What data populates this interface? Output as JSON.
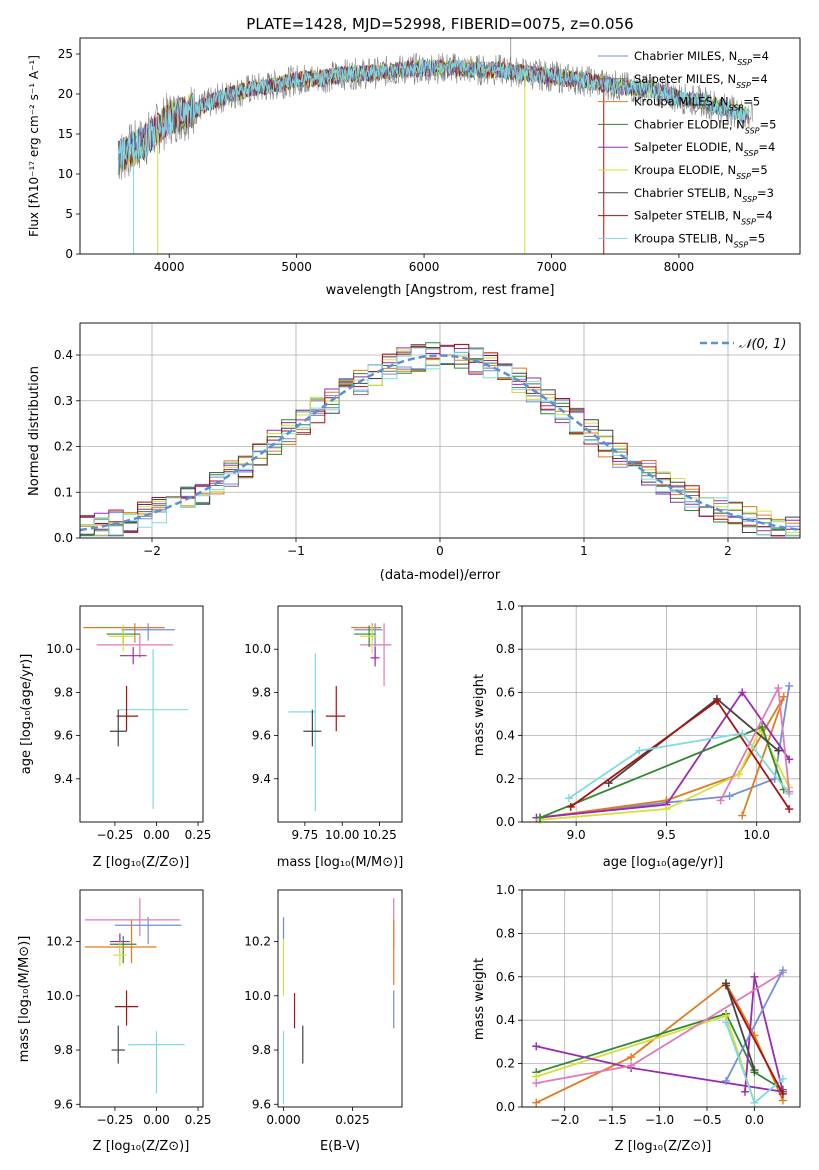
{
  "figure_title": "PLATE=1428, MJD=52998, FIBERID=0075, z=0.056",
  "colors": {
    "chab_miles": "#6f8fe0",
    "salp_miles": "#777777",
    "kroupa_miles": "#e07b1f",
    "chab_elodie": "#2f8a2f",
    "salp_elodie": "#9a2ab0",
    "kroupa_elodie": "#d7df3a",
    "chab_stelib": "#444444",
    "salp_stelib": "#aa1111",
    "kroupa_stelib": "#7fdbe0",
    "pink": "#e07ab8",
    "gauss": "#5b8fd6"
  },
  "chart_data": [
    {
      "id": "spectrum",
      "type": "line",
      "title": "PLATE=1428, MJD=52998, FIBERID=0075, z=0.056",
      "xlabel": "wavelength [Angstrom, rest frame]",
      "ylabel": "Flux [fλ10⁻¹⁷ erg cm⁻² s⁻¹ A⁻¹]",
      "xlim": [
        3300,
        8950
      ],
      "ylim": [
        0,
        27
      ],
      "xticks": [
        "4000",
        "5000",
        "6000",
        "7000",
        "8000"
      ],
      "yticks": [
        "0",
        "5",
        "10",
        "15",
        "20",
        "25"
      ],
      "legend_position": "right",
      "series": [
        {
          "name": "Chabrier MILES, N_SSP=4",
          "color_key": "chab_miles"
        },
        {
          "name": "Salpeter MILES, N_SSP=4",
          "color_key": "salp_miles"
        },
        {
          "name": "Kroupa MILES, N_SSP=5",
          "color_key": "kroupa_miles"
        },
        {
          "name": "Chabrier ELODIE, N_SSP=5",
          "color_key": "chab_elodie"
        },
        {
          "name": "Salpeter ELODIE, N_SSP=4",
          "color_key": "salp_elodie"
        },
        {
          "name": "Kroupa ELODIE, N_SSP=5",
          "color_key": "kroupa_elodie"
        },
        {
          "name": "Chabrier STELIB, N_SSP=3",
          "color_key": "chab_stelib"
        },
        {
          "name": "Salpeter STELIB, N_SSP=4",
          "color_key": "salp_stelib"
        },
        {
          "name": "Kroupa STELIB, N_SSP=5",
          "color_key": "kroupa_stelib"
        }
      ],
      "continuum": {
        "x": [
          3600,
          3800,
          4000,
          4200,
          4400,
          4600,
          4800,
          5000,
          5200,
          5400,
          5600,
          5800,
          6000,
          6200,
          6400,
          6600,
          6800,
          7000,
          7200,
          7400,
          7600,
          7800,
          8000,
          8200,
          8400,
          8600
        ],
        "y": [
          12,
          14,
          17,
          18,
          19.5,
          20.5,
          21,
          21.8,
          22,
          22.5,
          22.6,
          23,
          23.2,
          23.3,
          23,
          23,
          22.6,
          22.2,
          21.8,
          21.3,
          20.8,
          20.5,
          19.5,
          19,
          18,
          17
        ]
      }
    },
    {
      "id": "residuals",
      "type": "histogram",
      "xlabel": "(data-model)/error",
      "ylabel": "Normed distribution",
      "xlim": [
        -2.5,
        2.5
      ],
      "ylim": [
        0,
        0.47
      ],
      "xticks": [
        "−2",
        "−1",
        "0",
        "1",
        "2"
      ],
      "yticks": [
        "0.0",
        "0.1",
        "0.2",
        "0.3",
        "0.4"
      ],
      "grid": true,
      "legend": "𝒩(0, 1)",
      "legend_position": "top-right",
      "bin_width": 0.1,
      "reference_curve": "normal(0,1)"
    },
    {
      "id": "age_vs_Z",
      "type": "errorbar",
      "xlabel": "Z [log₁₀(Z/Z⊙)]",
      "ylabel": "age  [log₁₀(age/yr)]",
      "xlim": [
        -0.46,
        0.28
      ],
      "ylim": [
        9.2,
        10.2
      ],
      "xticks": [
        "−0.25",
        "0.00",
        "0.25"
      ],
      "xtick_values": [
        -0.25,
        0,
        0.25
      ],
      "yticks": [
        "9.4",
        "9.6",
        "9.8",
        "10.0"
      ],
      "ytick_values": [
        9.4,
        9.6,
        9.8,
        10.0
      ],
      "points": [
        {
          "color_key": "kroupa_miles",
          "x": -0.13,
          "xerr": [
            0.31,
            0.18
          ],
          "y": 10.1,
          "yerr": [
            0.07,
            0.02
          ]
        },
        {
          "color_key": "chab_miles",
          "x": -0.05,
          "xerr": [
            0.16,
            0.16
          ],
          "y": 10.09,
          "yerr": [
            0.05,
            0.03
          ]
        },
        {
          "color_key": "pink",
          "x": -0.1,
          "xerr": [
            0.26,
            0.2
          ],
          "y": 10.02,
          "yerr": [
            0.06,
            0.05
          ]
        },
        {
          "color_key": "chab_elodie",
          "x": -0.2,
          "xerr": [
            0.1,
            0.1
          ],
          "y": 10.07,
          "yerr": [
            0.05,
            0.04
          ]
        },
        {
          "color_key": "kroupa_elodie",
          "x": -0.2,
          "xerr": [
            0.09,
            0.07
          ],
          "y": 10.06,
          "yerr": [
            0.07,
            0.05
          ]
        },
        {
          "color_key": "salp_elodie",
          "x": -0.14,
          "xerr": [
            0.08,
            0.08
          ],
          "y": 9.97,
          "yerr": [
            0.04,
            0.04
          ]
        },
        {
          "color_key": "kroupa_stelib",
          "x": -0.02,
          "xerr": [
            0.21,
            0.21
          ],
          "y": 9.72,
          "yerr": [
            0.46,
            0.28
          ]
        },
        {
          "color_key": "salp_stelib",
          "x": -0.18,
          "xerr": [
            0.06,
            0.07
          ],
          "y": 9.69,
          "yerr": [
            0.07,
            0.14
          ]
        },
        {
          "color_key": "chab_stelib",
          "x": -0.23,
          "xerr": [
            0.05,
            0.05
          ],
          "y": 9.62,
          "yerr": [
            0.07,
            0.1
          ]
        }
      ]
    },
    {
      "id": "age_vs_mass",
      "type": "errorbar",
      "xlabel": "mass [log₁₀(M/M⊙)]",
      "ylabel": "",
      "xlim": [
        9.57,
        10.4
      ],
      "ylim": [
        9.2,
        10.2
      ],
      "xticks": [
        "9.75",
        "10.00",
        "10.25"
      ],
      "xtick_values": [
        9.75,
        10.0,
        10.25
      ],
      "yticks": [
        "9.4",
        "9.6",
        "9.8",
        "10.0"
      ],
      "ytick_values": [
        9.4,
        9.6,
        9.8,
        10.0
      ],
      "points": [
        {
          "color_key": "chab_miles",
          "x": 10.22,
          "xerr": [
            0.14,
            0.05
          ],
          "y": 10.09,
          "yerr": [
            0.14,
            0.03
          ]
        },
        {
          "color_key": "kroupa_miles",
          "x": 10.2,
          "xerr": [
            0.14,
            0.06
          ],
          "y": 10.1,
          "yerr": [
            0.06,
            0.02
          ]
        },
        {
          "color_key": "pink",
          "x": 10.28,
          "xerr": [
            0.16,
            0.05
          ],
          "y": 10.02,
          "yerr": [
            0.19,
            0.1
          ]
        },
        {
          "color_key": "chab_elodie",
          "x": 10.18,
          "xerr": [
            0.1,
            0.04
          ],
          "y": 10.07,
          "yerr": [
            0.06,
            0.04
          ]
        },
        {
          "color_key": "kroupa_elodie",
          "x": 10.2,
          "xerr": [
            0.08,
            0.03
          ],
          "y": 10.06,
          "yerr": [
            0.08,
            0.05
          ]
        },
        {
          "color_key": "salp_elodie",
          "x": 10.22,
          "xerr": [
            0.03,
            0.03
          ],
          "y": 9.96,
          "yerr": [
            0.04,
            0.05
          ]
        },
        {
          "color_key": "kroupa_stelib",
          "x": 9.82,
          "xerr": [
            0.18,
            0.0
          ],
          "y": 9.71,
          "yerr": [
            0.46,
            0.27
          ]
        },
        {
          "color_key": "salp_stelib",
          "x": 9.96,
          "xerr": [
            0.07,
            0.06
          ],
          "y": 9.69,
          "yerr": [
            0.07,
            0.14
          ]
        },
        {
          "color_key": "chab_stelib",
          "x": 9.8,
          "xerr": [
            0.06,
            0.06
          ],
          "y": 9.62,
          "yerr": [
            0.07,
            0.1
          ]
        }
      ]
    },
    {
      "id": "weight_vs_age",
      "type": "line",
      "xlabel": "age  [log₁₀(age/yr)]",
      "ylabel": "mass weight",
      "xlim": [
        8.7,
        10.24
      ],
      "ylim": [
        0,
        1.0
      ],
      "xticks": [
        "9.0",
        "9.5",
        "10.0"
      ],
      "xtick_values": [
        9.0,
        9.5,
        10.0
      ],
      "yticks": [
        "0.0",
        "0.2",
        "0.4",
        "0.6",
        "0.8",
        "1.0"
      ],
      "ytick_values": [
        0,
        0.2,
        0.4,
        0.6,
        0.8,
        1.0
      ],
      "grid": true,
      "series": [
        {
          "color_key": "chab_miles",
          "x": [
            8.8,
            9.5,
            9.85,
            10.1,
            10.18
          ],
          "y": [
            0.02,
            0.09,
            0.12,
            0.2,
            0.63
          ]
        },
        {
          "color_key": "kroupa_miles",
          "x": [
            8.8,
            9.5,
            9.9,
            10.15,
            9.92
          ],
          "y": [
            0.02,
            0.1,
            0.22,
            0.58,
            0.03
          ]
        },
        {
          "color_key": "salp_elodie",
          "x": [
            8.78,
            9.5,
            9.92,
            10.18
          ],
          "y": [
            0.02,
            0.08,
            0.6,
            0.29
          ]
        },
        {
          "color_key": "kroupa_elodie",
          "x": [
            8.8,
            9.5,
            9.9,
            10.02,
            10.18
          ],
          "y": [
            0.01,
            0.06,
            0.22,
            0.43,
            0.16
          ]
        },
        {
          "color_key": "chab_elodie",
          "x": [
            8.8,
            10.03,
            10.15
          ],
          "y": [
            0.02,
            0.44,
            0.15
          ]
        },
        {
          "color_key": "chab_stelib",
          "x": [
            9.18,
            9.78,
            10.12
          ],
          "y": [
            0.18,
            0.57,
            0.33
          ]
        },
        {
          "color_key": "salp_stelib",
          "x": [
            8.97,
            9.78,
            10.18
          ],
          "y": [
            0.07,
            0.56,
            0.06
          ]
        },
        {
          "color_key": "kroupa_stelib",
          "x": [
            8.96,
            9.35,
            9.92,
            10.18
          ],
          "y": [
            0.11,
            0.33,
            0.41,
            0.13
          ]
        },
        {
          "color_key": "pink",
          "x": [
            9.8,
            10.12,
            10.18
          ],
          "y": [
            0.1,
            0.62,
            0.14
          ]
        }
      ]
    },
    {
      "id": "mass_vs_Z",
      "type": "errorbar",
      "xlabel": "Z [log₁₀(Z/Z⊙)]",
      "ylabel": "mass [log₁₀(M/M⊙)]",
      "xlim": [
        -0.46,
        0.28
      ],
      "ylim": [
        9.59,
        10.39
      ],
      "xticks": [
        "−0.25",
        "0.00",
        "0.25"
      ],
      "xtick_values": [
        -0.25,
        0,
        0.25
      ],
      "yticks": [
        "9.6",
        "9.8",
        "10.0",
        "10.2"
      ],
      "ytick_values": [
        9.6,
        9.8,
        10.0,
        10.2
      ],
      "points": [
        {
          "color_key": "pink",
          "x": -0.1,
          "xerr": [
            0.33,
            0.24
          ],
          "y": 10.28,
          "yerr": [
            0.06,
            0.08
          ]
        },
        {
          "color_key": "chab_miles",
          "x": -0.05,
          "xerr": [
            0.2,
            0.2
          ],
          "y": 10.26,
          "yerr": [
            0.07,
            0.03
          ]
        },
        {
          "color_key": "chab_elodie",
          "x": -0.2,
          "xerr": [
            0.08,
            0.08
          ],
          "y": 10.19,
          "yerr": [
            0.07,
            0.03
          ]
        },
        {
          "color_key": "kroupa_miles",
          "x": -0.15,
          "xerr": [
            0.28,
            0.15
          ],
          "y": 10.18,
          "yerr": [
            0.06,
            0.1
          ]
        },
        {
          "color_key": "salp_elodie",
          "x": -0.22,
          "xerr": [
            0.06,
            0.06
          ],
          "y": 10.2,
          "yerr": [
            0.04,
            0.03
          ]
        },
        {
          "color_key": "kroupa_elodie",
          "x": -0.22,
          "xerr": [
            0.04,
            0.04
          ],
          "y": 10.15,
          "yerr": [
            0.04,
            0.05
          ]
        },
        {
          "color_key": "kroupa_stelib",
          "x": 0.0,
          "xerr": [
            0.17,
            0.17
          ],
          "y": 9.82,
          "yerr": [
            0.18,
            0.05
          ]
        },
        {
          "color_key": "salp_stelib",
          "x": -0.18,
          "xerr": [
            0.07,
            0.07
          ],
          "y": 9.96,
          "yerr": [
            0.07,
            0.06
          ]
        },
        {
          "color_key": "chab_stelib",
          "x": -0.23,
          "xerr": [
            0.04,
            0.04
          ],
          "y": 9.8,
          "yerr": [
            0.05,
            0.09
          ]
        }
      ]
    },
    {
      "id": "mass_vs_ebv",
      "type": "errorbar",
      "xlabel": "E(B-V)",
      "ylabel": "",
      "xlim": [
        -0.002,
        0.043
      ],
      "ylim": [
        9.59,
        10.39
      ],
      "xticks": [
        "0.000",
        "0.025"
      ],
      "xtick_values": [
        0.0,
        0.025
      ],
      "yticks": [
        "9.6",
        "9.8",
        "10.0",
        "10.2"
      ],
      "ytick_values": [
        9.6,
        9.8,
        10.0,
        10.2
      ],
      "points": [
        {
          "color_key": "kroupa_elodie",
          "x": 0.0,
          "y": 10.15,
          "yerr": [
            0.15,
            0.12
          ]
        },
        {
          "color_key": "kroupa_stelib",
          "x": 0.0,
          "y": 9.82,
          "yerr": [
            0.22,
            0.05
          ]
        },
        {
          "color_key": "chab_miles",
          "x": 0.0,
          "y": 10.26,
          "yerr": [
            0.05,
            0.03
          ]
        },
        {
          "color_key": "salp_stelib",
          "x": 0.004,
          "y": 9.96,
          "yerr": [
            0.08,
            0.05
          ]
        },
        {
          "color_key": "chab_stelib",
          "x": 0.007,
          "y": 9.8,
          "yerr": [
            0.05,
            0.09
          ]
        },
        {
          "color_key": "pink",
          "x": 0.04,
          "y": 10.28,
          "yerr": [
            0.1,
            0.08
          ]
        },
        {
          "color_key": "kroupa_miles",
          "x": 0.04,
          "y": 10.18,
          "yerr": [
            0.14,
            0.1
          ]
        },
        {
          "color_key": "chab_miles",
          "x": 0.04,
          "y": 9.95,
          "yerr": [
            0.07,
            0.07
          ]
        }
      ]
    },
    {
      "id": "weight_vs_Z",
      "type": "line",
      "xlabel": "Z [log₁₀(Z/Z⊙)]",
      "ylabel": "mass weight",
      "xlim": [
        -2.45,
        0.48
      ],
      "ylim": [
        0,
        1.0
      ],
      "xticks": [
        "−2.0",
        "−1.5",
        "−1.0",
        "−0.5",
        "0.0"
      ],
      "xtick_values": [
        -2.0,
        -1.5,
        -1.0,
        -0.5,
        0.0
      ],
      "yticks": [
        "0.0",
        "0.2",
        "0.4",
        "0.6",
        "0.8",
        "1.0"
      ],
      "ytick_values": [
        0,
        0.2,
        0.4,
        0.6,
        0.8,
        1.0
      ],
      "grid": true,
      "series": [
        {
          "color_key": "kroupa_miles",
          "x": [
            -2.3,
            -1.3,
            -0.3,
            0.0,
            0.3
          ],
          "y": [
            0.02,
            0.23,
            0.57,
            0.33,
            0.03
          ]
        },
        {
          "color_key": "chab_elodie",
          "x": [
            -2.3,
            -0.3,
            0.0,
            0.3
          ],
          "y": [
            0.16,
            0.43,
            0.16,
            0.08
          ]
        },
        {
          "color_key": "kroupa_elodie",
          "x": [
            -2.3,
            -0.3,
            0.0
          ],
          "y": [
            0.14,
            0.42,
            0.02
          ]
        },
        {
          "color_key": "salp_elodie",
          "x": [
            -2.3,
            -1.3,
            0.3,
            0.0,
            -0.1
          ],
          "y": [
            0.28,
            0.18,
            0.07,
            0.6,
            0.07
          ]
        },
        {
          "color_key": "pink",
          "x": [
            -2.3,
            -1.3,
            0.3
          ],
          "y": [
            0.11,
            0.19,
            0.62
          ]
        },
        {
          "color_key": "chab_miles",
          "x": [
            -0.3,
            0.3
          ],
          "y": [
            0.12,
            0.63
          ]
        },
        {
          "color_key": "kroupa_stelib",
          "x": [
            -0.3,
            0.0,
            0.3
          ],
          "y": [
            0.39,
            0.02,
            0.13
          ]
        },
        {
          "color_key": "salp_stelib",
          "x": [
            -0.3,
            0.3
          ],
          "y": [
            0.56,
            0.06
          ]
        },
        {
          "color_key": "chab_stelib",
          "x": [
            -0.3,
            0.0
          ],
          "y": [
            0.57,
            0.17
          ]
        }
      ]
    }
  ]
}
